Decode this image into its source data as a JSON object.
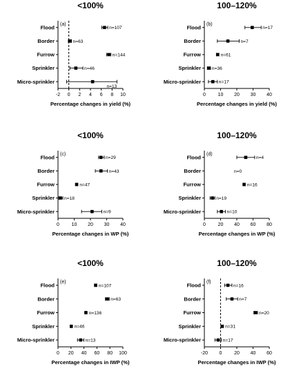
{
  "column_titles": [
    "<100%",
    "100–120%"
  ],
  "chart_data": [
    {
      "type": "scatter",
      "panel": "(a)",
      "title": "<100%",
      "xlabel": "Percentage changes in yield (%)",
      "categories": [
        "Flood",
        "Border",
        "Furrow",
        "Sprinkler",
        "Micro-sprinkler"
      ],
      "xlim": [
        -2,
        10
      ],
      "xticks": [
        -2,
        0,
        2,
        4,
        6,
        8,
        10
      ],
      "reference_line": 0,
      "points": [
        {
          "category": "Flood",
          "value": 6.6,
          "ci": [
            6.1,
            7.2
          ],
          "n": "n=107"
        },
        {
          "category": "Border",
          "value": 0.2,
          "ci": [
            -0.1,
            0.5
          ],
          "n": "n=63"
        },
        {
          "category": "Furrow",
          "value": 7.4,
          "ci": [
            7.0,
            7.8
          ],
          "n": "n=144"
        },
        {
          "category": "Sprinkler",
          "value": 1.3,
          "ci": [
            0.2,
            2.6
          ],
          "n": "n=46"
        },
        {
          "category": "Micro-sprinkler",
          "value": 4.4,
          "ci": [
            -0.4,
            8.9
          ],
          "n": "n=13"
        }
      ]
    },
    {
      "type": "scatter",
      "panel": "(b)",
      "title": "100–120%",
      "xlabel": "Percentage changes in yield (%)",
      "categories": [
        "Flood",
        "Border",
        "Furrow",
        "Sprinkler",
        "Micro-sprinkler"
      ],
      "xlim": [
        0,
        40
      ],
      "xticks": [
        0,
        10,
        20,
        30,
        40
      ],
      "points": [
        {
          "category": "Flood",
          "value": 29.5,
          "ci": [
            25.0,
            35.0
          ],
          "n": "n=17"
        },
        {
          "category": "Border",
          "value": 14.5,
          "ci": [
            8.0,
            21.5
          ],
          "n": "n=7"
        },
        {
          "category": "Furrow",
          "value": 8.2,
          "ci": [
            7.4,
            9.0
          ],
          "n": "n=61"
        },
        {
          "category": "Sprinkler",
          "value": 2.8,
          "ci": [
            1.8,
            3.8
          ],
          "n": "n=36"
        },
        {
          "category": "Micro-sprinkler",
          "value": 5.2,
          "ci": [
            2.5,
            8.0
          ],
          "n": "n=17"
        }
      ]
    },
    {
      "type": "scatter",
      "panel": "(c)",
      "title": "<100%",
      "xlabel": "Percentage changes in WP (%)",
      "categories": [
        "Flood",
        "Border",
        "Furrow",
        "Sprinkler",
        "Micro-sprinkler"
      ],
      "xlim": [
        0,
        40
      ],
      "xticks": [
        0,
        10,
        20,
        30,
        40
      ],
      "points": [
        {
          "category": "Flood",
          "value": 26.5,
          "ci": [
            25.0,
            28.5
          ],
          "n": "n=29"
        },
        {
          "category": "Border",
          "value": 26.5,
          "ci": [
            23.0,
            30.5
          ],
          "n": "n=43"
        },
        {
          "category": "Furrow",
          "value": 11.5,
          "ci": [
            11.0,
            12.0
          ],
          "n": "n=47"
        },
        {
          "category": "Sprinkler",
          "value": 1.5,
          "ci": [
            0.5,
            3.0
          ],
          "n": "n=18"
        },
        {
          "category": "Micro-sprinkler",
          "value": 21.0,
          "ci": [
            14.5,
            27.0
          ],
          "n": "n=9"
        }
      ]
    },
    {
      "type": "scatter",
      "panel": "(d)",
      "title": "100–120%",
      "xlabel": "Percentage changes in WP (%)",
      "categories": [
        "Flood",
        "Border",
        "Furrow",
        "Sprinkler",
        "Micro-sprinkler"
      ],
      "xlim": [
        0,
        80
      ],
      "xticks": [
        0,
        20,
        40,
        60,
        80
      ],
      "points": [
        {
          "category": "Flood",
          "value": 51.0,
          "ci": [
            40.0,
            62.0
          ],
          "n": "n=4"
        },
        {
          "category": "Border",
          "value": null,
          "ci": null,
          "n": "n=0"
        },
        {
          "category": "Furrow",
          "value": 49.0,
          "ci": [
            48.0,
            50.0
          ],
          "n": "n=16"
        },
        {
          "category": "Sprinkler",
          "value": 10.0,
          "ci": [
            7.0,
            13.0
          ],
          "n": "n=19"
        },
        {
          "category": "Micro-sprinkler",
          "value": 21.0,
          "ci": [
            16.0,
            26.0
          ],
          "n": "n=10"
        }
      ]
    },
    {
      "type": "scatter",
      "panel": "(e)",
      "title": "<100%",
      "xlabel": "Percentage changes in IWP (%)",
      "categories": [
        "Flood",
        "Border",
        "Furrow",
        "Sprinkler",
        "Micro-sprinkler"
      ],
      "xlim": [
        0,
        100
      ],
      "xticks": [
        0,
        20,
        40,
        60,
        80,
        100
      ],
      "points": [
        {
          "category": "Flood",
          "value": 58.0,
          "ci": [
            56.5,
            59.5
          ],
          "n": "n=107"
        },
        {
          "category": "Border",
          "value": 76.0,
          "ci": [
            73.0,
            79.0
          ],
          "n": "n=63"
        },
        {
          "category": "Furrow",
          "value": 43.0,
          "ci": [
            42.0,
            44.0
          ],
          "n": "n=136"
        },
        {
          "category": "Sprinkler",
          "value": 20.5,
          "ci": [
            19.5,
            21.5
          ],
          "n": "n=46"
        },
        {
          "category": "Micro-sprinkler",
          "value": 35.0,
          "ci": [
            30.0,
            40.0
          ],
          "n": "n=13"
        }
      ]
    },
    {
      "type": "scatter",
      "panel": "(f)",
      "title": "100–120%",
      "xlabel": "Percentage changes in IWP (%)",
      "categories": [
        "Flood",
        "Border",
        "Furrow",
        "Sprinkler",
        "Micro-sprinkler"
      ],
      "xlim": [
        -20,
        60
      ],
      "xticks": [
        -20,
        0,
        20,
        40,
        60
      ],
      "reference_line": 0,
      "points": [
        {
          "category": "Flood",
          "value": 9.0,
          "ci": [
            5.0,
            14.0
          ],
          "n": "n=16"
        },
        {
          "category": "Border",
          "value": 14.0,
          "ci": [
            7.0,
            21.0
          ],
          "n": "n=7"
        },
        {
          "category": "Furrow",
          "value": 43.0,
          "ci": [
            41.0,
            45.5
          ],
          "n": "n=20"
        },
        {
          "category": "Sprinkler",
          "value": 2.0,
          "ci": [
            0.5,
            3.5
          ],
          "n": "n=31"
        },
        {
          "category": "Micro-sprinkler",
          "value": -3.0,
          "ci": [
            -7.0,
            1.0
          ],
          "n": "n=17"
        }
      ]
    }
  ]
}
